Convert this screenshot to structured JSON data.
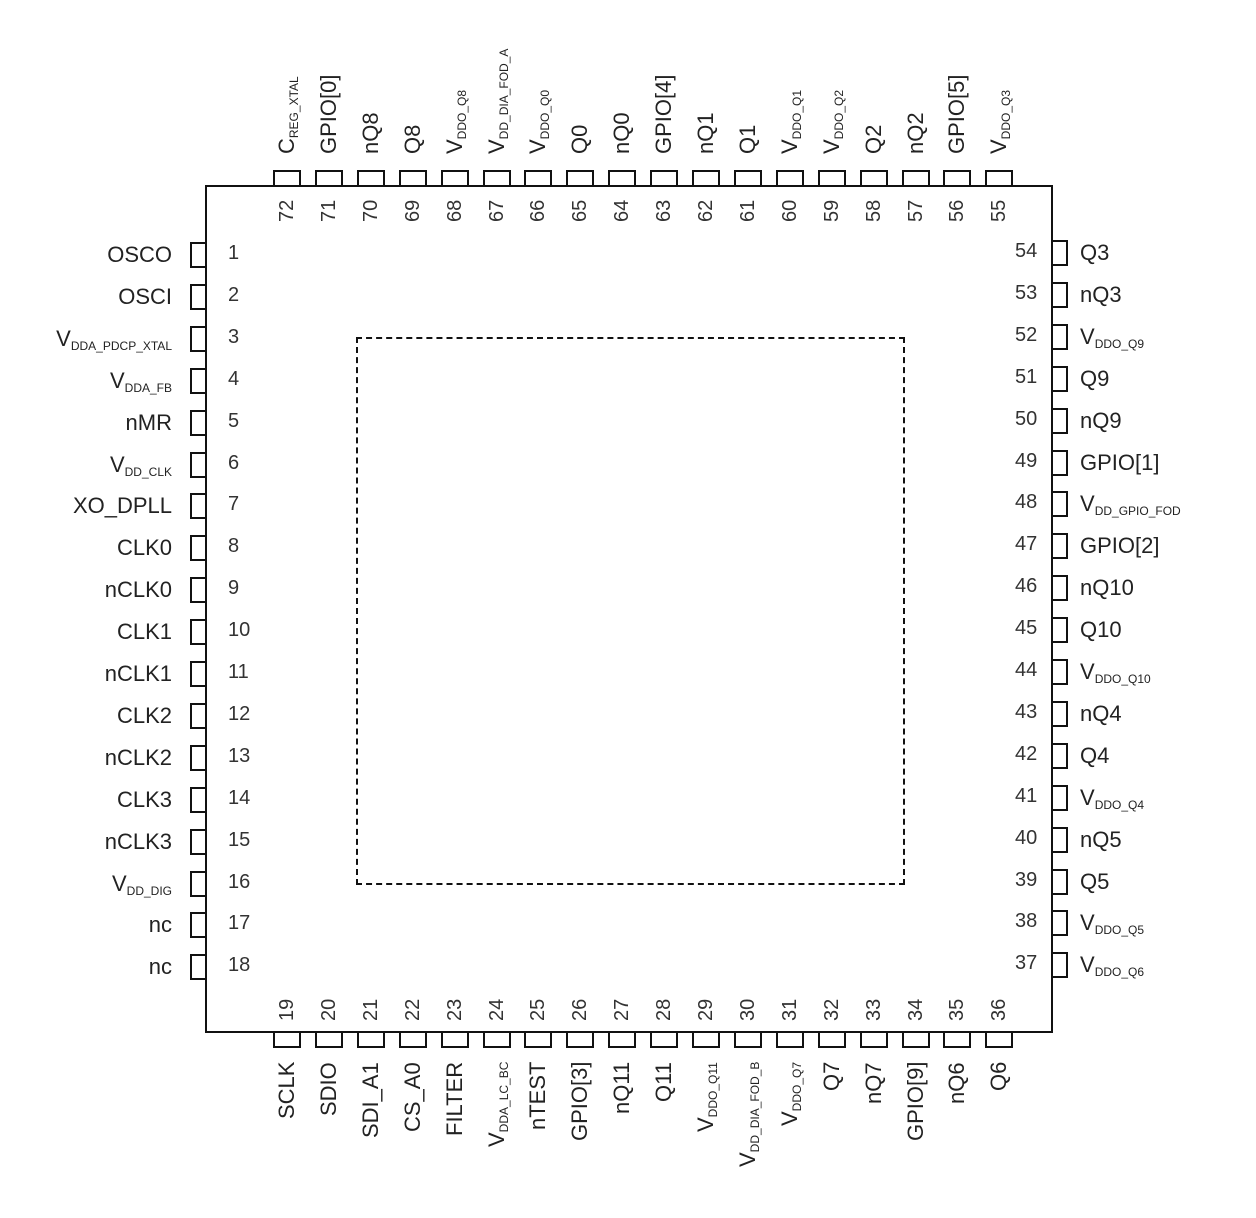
{
  "diagram": {
    "type": "ic-pinout",
    "package": "72-pin QFN",
    "exposed_pad": "dashed-outline",
    "left_pins": [
      {
        "num": "1",
        "name": "OSCO",
        "sub": ""
      },
      {
        "num": "2",
        "name": "OSCI",
        "sub": ""
      },
      {
        "num": "3",
        "name": "V",
        "sub": "DDA_PDCP_XTAL"
      },
      {
        "num": "4",
        "name": "V",
        "sub": "DDA_FB"
      },
      {
        "num": "5",
        "name": "nMR",
        "sub": ""
      },
      {
        "num": "6",
        "name": "V",
        "sub": "DD_CLK"
      },
      {
        "num": "7",
        "name": "XO_DPLL",
        "sub": ""
      },
      {
        "num": "8",
        "name": "CLK0",
        "sub": ""
      },
      {
        "num": "9",
        "name": "nCLK0",
        "sub": ""
      },
      {
        "num": "10",
        "name": "CLK1",
        "sub": ""
      },
      {
        "num": "11",
        "name": "nCLK1",
        "sub": ""
      },
      {
        "num": "12",
        "name": "CLK2",
        "sub": ""
      },
      {
        "num": "13",
        "name": "nCLK2",
        "sub": ""
      },
      {
        "num": "14",
        "name": "CLK3",
        "sub": ""
      },
      {
        "num": "15",
        "name": "nCLK3",
        "sub": ""
      },
      {
        "num": "16",
        "name": "V",
        "sub": "DD_DIG"
      },
      {
        "num": "17",
        "name": "nc",
        "sub": ""
      },
      {
        "num": "18",
        "name": "nc",
        "sub": ""
      }
    ],
    "bottom_pins": [
      {
        "num": "19",
        "name": "SCLK",
        "sub": ""
      },
      {
        "num": "20",
        "name": "SDIO",
        "sub": ""
      },
      {
        "num": "21",
        "name": "SDI_A1",
        "sub": ""
      },
      {
        "num": "22",
        "name": "CS_A0",
        "sub": ""
      },
      {
        "num": "23",
        "name": "FILTER",
        "sub": ""
      },
      {
        "num": "24",
        "name": "V",
        "sub": "DDA_LC_BC"
      },
      {
        "num": "25",
        "name": "nTEST",
        "sub": ""
      },
      {
        "num": "26",
        "name": "GPIO[3]",
        "sub": ""
      },
      {
        "num": "27",
        "name": "nQ11",
        "sub": ""
      },
      {
        "num": "28",
        "name": "Q11",
        "sub": ""
      },
      {
        "num": "29",
        "name": "V",
        "sub": "DDO_Q11"
      },
      {
        "num": "30",
        "name": "V",
        "sub": "DD_DIA_FOD_B"
      },
      {
        "num": "31",
        "name": "V",
        "sub": "DDO_Q7"
      },
      {
        "num": "32",
        "name": "Q7",
        "sub": ""
      },
      {
        "num": "33",
        "name": "nQ7",
        "sub": ""
      },
      {
        "num": "34",
        "name": "GPIO[9]",
        "sub": ""
      },
      {
        "num": "35",
        "name": "nQ6",
        "sub": ""
      },
      {
        "num": "36",
        "name": "Q6",
        "sub": ""
      }
    ],
    "right_pins": [
      {
        "num": "54",
        "name": "Q3",
        "sub": ""
      },
      {
        "num": "53",
        "name": "nQ3",
        "sub": ""
      },
      {
        "num": "52",
        "name": "V",
        "sub": "DDO_Q9"
      },
      {
        "num": "51",
        "name": "Q9",
        "sub": ""
      },
      {
        "num": "50",
        "name": "nQ9",
        "sub": ""
      },
      {
        "num": "49",
        "name": "GPIO[1]",
        "sub": ""
      },
      {
        "num": "48",
        "name": "V",
        "sub": "DD_GPIO_FOD"
      },
      {
        "num": "47",
        "name": "GPIO[2]",
        "sub": ""
      },
      {
        "num": "46",
        "name": "nQ10",
        "sub": ""
      },
      {
        "num": "45",
        "name": "Q10",
        "sub": ""
      },
      {
        "num": "44",
        "name": "V",
        "sub": "DDO_Q10"
      },
      {
        "num": "43",
        "name": "nQ4",
        "sub": ""
      },
      {
        "num": "42",
        "name": "Q4",
        "sub": ""
      },
      {
        "num": "41",
        "name": "V",
        "sub": "DDO_Q4"
      },
      {
        "num": "40",
        "name": "nQ5",
        "sub": ""
      },
      {
        "num": "39",
        "name": "Q5",
        "sub": ""
      },
      {
        "num": "38",
        "name": "V",
        "sub": "DDO_Q5"
      },
      {
        "num": "37",
        "name": "V",
        "sub": "DDO_Q6"
      }
    ],
    "top_pins": [
      {
        "num": "72",
        "name": "C",
        "sub": "REG_XTAL"
      },
      {
        "num": "71",
        "name": "GPIO[0]",
        "sub": ""
      },
      {
        "num": "70",
        "name": "nQ8",
        "sub": ""
      },
      {
        "num": "69",
        "name": "Q8",
        "sub": ""
      },
      {
        "num": "68",
        "name": "V",
        "sub": "DDO_Q8"
      },
      {
        "num": "67",
        "name": "V",
        "sub": "DD_DIA_FOD_A"
      },
      {
        "num": "66",
        "name": "V",
        "sub": "DDO_Q0"
      },
      {
        "num": "65",
        "name": "Q0",
        "sub": ""
      },
      {
        "num": "64",
        "name": "nQ0",
        "sub": ""
      },
      {
        "num": "63",
        "name": "GPIO[4]",
        "sub": ""
      },
      {
        "num": "62",
        "name": "nQ1",
        "sub": ""
      },
      {
        "num": "61",
        "name": "Q1",
        "sub": ""
      },
      {
        "num": "60",
        "name": "V",
        "sub": "DDO_Q1"
      },
      {
        "num": "59",
        "name": "V",
        "sub": "DDO_Q2"
      },
      {
        "num": "58",
        "name": "Q2",
        "sub": ""
      },
      {
        "num": "57",
        "name": "nQ2",
        "sub": ""
      },
      {
        "num": "56",
        "name": "GPIO[5]",
        "sub": ""
      },
      {
        "num": "55",
        "name": "V",
        "sub": "DDO_Q3"
      }
    ]
  }
}
